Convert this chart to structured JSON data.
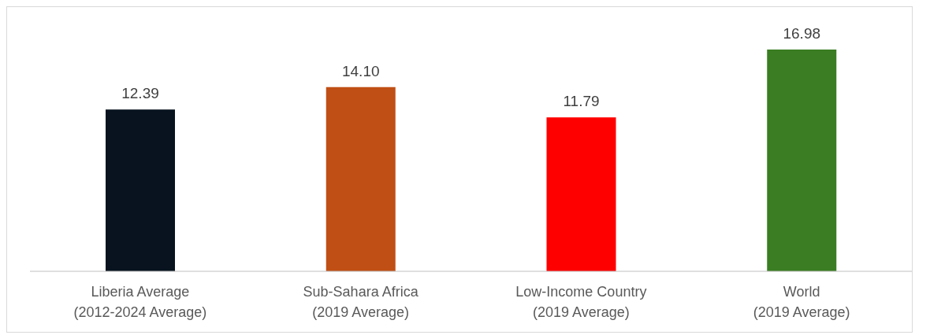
{
  "chart_data": {
    "type": "bar",
    "categories": [
      "Liberia Average\n(2012-2024 Average)",
      "Sub-Sahara Africa\n(2019 Average)",
      "Low-Income Country\n(2019 Average)",
      "World\n(2019 Average)"
    ],
    "values": [
      12.39,
      14.1,
      11.79,
      16.98
    ],
    "value_labels": [
      "12.39",
      "14.10",
      "11.79",
      "16.98"
    ],
    "colors": [
      "#08131f",
      "#c04f15",
      "#ff0000",
      "#3a7d22"
    ],
    "tick_labels": "x",
    "grid": false,
    "legend": false
  }
}
